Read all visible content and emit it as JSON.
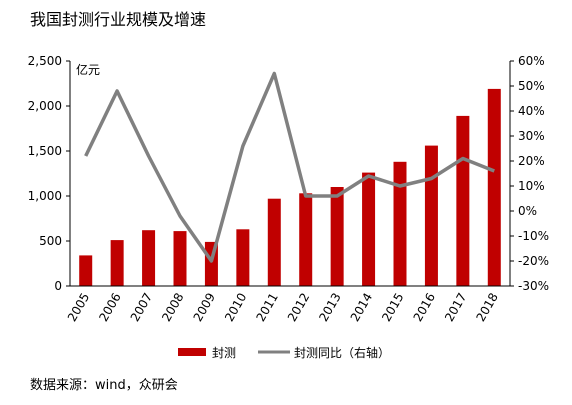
{
  "title": "我国封测行业规模及增速",
  "source": "数据来源：wind，众研会",
  "colors": {
    "bar": "#c00000",
    "line": "#808080",
    "axis": "#000000"
  },
  "chart_data": {
    "type": "bar",
    "categories": [
      "2005",
      "2006",
      "2007",
      "2008",
      "2009",
      "2010",
      "2011",
      "2012",
      "2013",
      "2014",
      "2015",
      "2016",
      "2017",
      "2018"
    ],
    "series": [
      {
        "name": "封测",
        "type": "bar",
        "axis": "left",
        "values": [
          340,
          510,
          620,
          610,
          490,
          630,
          970,
          1030,
          1100,
          1260,
          1380,
          1560,
          1890,
          2190
        ]
      },
      {
        "name": "封测同比（右轴）",
        "type": "line",
        "axis": "right",
        "values": [
          22,
          48,
          22,
          -2,
          -20,
          26,
          55,
          6,
          6,
          14,
          10,
          13,
          21,
          16
        ]
      }
    ],
    "left_axis": {
      "unit": "亿元",
      "ylim": [
        0,
        2500
      ],
      "ticks": [
        0,
        500,
        1000,
        1500,
        2000,
        2500
      ],
      "tick_labels": [
        "0",
        "500",
        "1,000",
        "1,500",
        "2,000",
        "2,500"
      ]
    },
    "right_axis": {
      "ylim": [
        -30,
        60
      ],
      "ticks": [
        -30,
        -20,
        -10,
        0,
        10,
        20,
        30,
        40,
        50,
        60
      ],
      "tick_labels": [
        "-30%",
        "-20%",
        "-10%",
        "0%",
        "10%",
        "20%",
        "30%",
        "40%",
        "50%",
        "60%"
      ]
    },
    "legend": {
      "position": "bottom",
      "items": [
        "封测",
        "封测同比（右轴）"
      ]
    },
    "grid": false
  }
}
